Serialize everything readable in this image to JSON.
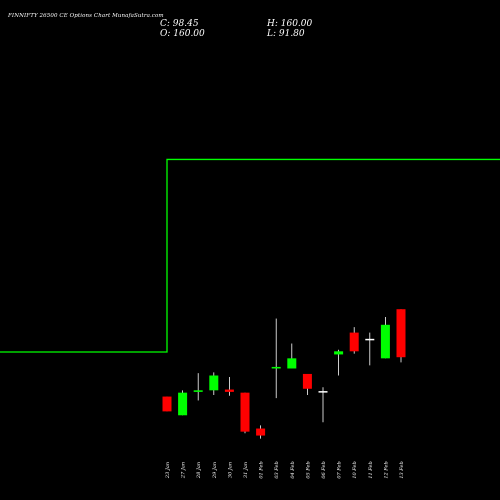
{
  "header": {
    "title": "FINNIFTY 26500  CE Options  Chart MunafaSutra.com",
    "close_label": "C: 98.45",
    "high_label": "H: 160.00",
    "open_label": "O: 160.00",
    "low_label": "L: 91.80"
  },
  "colors": {
    "background": "#000000",
    "up": "#00ff00",
    "down": "#ff0000",
    "neutral": "#ffffff",
    "ma_line": "#00ff00"
  },
  "chart_data": {
    "type": "candlestick",
    "title": "FINNIFTY 26500  CE Options  Chart MunafaSutra.com",
    "x": [
      "23 Jan",
      "27 Jan",
      "28 Jan",
      "29 Jan",
      "30 Jan",
      "31 Jan",
      "01 Feb",
      "03 Feb",
      "04 Feb",
      "05 Feb",
      "06 Feb",
      "07 Feb",
      "10 Feb",
      "11 Feb",
      "12 Feb",
      "13 Feb"
    ],
    "ohlc": [
      {
        "date": "23 Jan",
        "open": 48,
        "high": 48,
        "low": 29,
        "close": 29
      },
      {
        "date": "27 Jan",
        "open": 24,
        "high": 56,
        "low": 24,
        "close": 53
      },
      {
        "date": "28 Jan",
        "open": 54,
        "high": 78,
        "low": 43,
        "close": 56
      },
      {
        "date": "29 Jan",
        "open": 56,
        "high": 79,
        "low": 50,
        "close": 75
      },
      {
        "date": "30 Jan",
        "open": 57,
        "high": 73,
        "low": 49,
        "close": 54
      },
      {
        "date": "31 Jan",
        "open": 53,
        "high": 53,
        "low": 1,
        "close": 3
      },
      {
        "date": "01 Feb",
        "open": 7,
        "high": 11,
        "low": -6,
        "close": -2
      },
      {
        "date": "03 Feb",
        "open": 84,
        "high": 148,
        "low": 46,
        "close": 86
      },
      {
        "date": "04 Feb",
        "open": 84,
        "high": 116,
        "low": 84,
        "close": 97
      },
      {
        "date": "05 Feb",
        "open": 77,
        "high": 77,
        "low": 50,
        "close": 58
      },
      {
        "date": "06 Feb",
        "open": 55,
        "high": 60,
        "low": 15,
        "close": 55
      },
      {
        "date": "07 Feb",
        "open": 102,
        "high": 108,
        "low": 75,
        "close": 106
      },
      {
        "date": "10 Feb",
        "open": 130,
        "high": 137,
        "low": 103,
        "close": 106
      },
      {
        "date": "11 Feb",
        "open": 122,
        "high": 130,
        "low": 88,
        "close": 122
      },
      {
        "date": "12 Feb",
        "open": 97,
        "high": 150,
        "low": 97,
        "close": 140
      },
      {
        "date": "13 Feb",
        "open": 160,
        "high": 160,
        "low": 91.8,
        "close": 98.45
      }
    ],
    "moving_average": [
      {
        "date": "23 Jan",
        "value": 352
      },
      {
        "date": "27 Jan",
        "value": 352
      },
      {
        "date": "28 Jan",
        "value": 352
      },
      {
        "date": "29 Jan",
        "value": 352
      },
      {
        "date": "30 Jan",
        "value": 352
      },
      {
        "date": "31 Jan",
        "value": 352
      },
      {
        "date": "01 Feb",
        "value": 352
      },
      {
        "date": "03 Feb",
        "value": 352
      },
      {
        "date": "04 Feb",
        "value": 352
      },
      {
        "date": "05 Feb",
        "value": 352
      },
      {
        "date": "06 Feb",
        "value": 352
      },
      {
        "date": "07 Feb",
        "value": 352
      },
      {
        "date": "10 Feb",
        "value": 352
      },
      {
        "date": "11 Feb",
        "value": 352
      },
      {
        "date": "12 Feb",
        "value": 352
      },
      {
        "date": "13 Feb",
        "value": 352
      }
    ],
    "grid": false,
    "legend": "none"
  }
}
